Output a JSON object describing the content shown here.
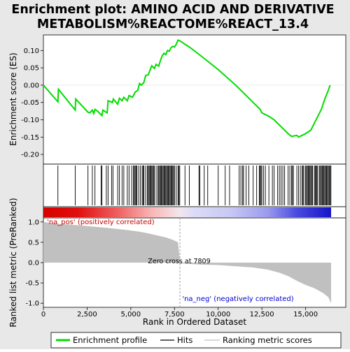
{
  "chart_data": {
    "type": "line",
    "title_line1": "Enrichment plot: AMINO ACID AND DERIVATIVE",
    "title_line2": "METABOLISM%REACTOME%REACT_13.4",
    "xlabel": "Rank in Ordered Dataset",
    "ylabel_top": "Enrichment score (ES)",
    "ylabel_bottom": "Ranked list metric (PreRanked)",
    "x_ticks": [
      0,
      2500,
      5000,
      7500,
      10000,
      12500,
      15000
    ],
    "x_tick_labels": [
      "0",
      "2,500",
      "5,000",
      "7,500",
      "10,000",
      "12,500",
      "15,000"
    ],
    "es_yticks": [
      0.1,
      0.05,
      0.0,
      -0.05,
      -0.1,
      -0.15,
      -0.2
    ],
    "es_ytick_labels": [
      "0.10",
      "0.05",
      "0.00",
      "-0.05",
      "-0.10",
      "-0.15",
      "-0.20"
    ],
    "es_ylim": [
      -0.228,
      0.145
    ],
    "metric_yticks": [
      1.0,
      0.5,
      0.0,
      -0.5,
      -1.0
    ],
    "metric_ytick_labels": [
      "1.0",
      "0.5",
      "0.0",
      "-0.5",
      "-1.0"
    ],
    "metric_ylim": [
      -1.1,
      1.1
    ],
    "xlim": [
      0,
      17300
    ],
    "n_genes": 16460,
    "zero_cross_rank": 7809,
    "zero_cross_label": "Zero cross at 7809",
    "pos_label": "'na_pos' (positively correlated)",
    "neg_label": "'na_neg' (negatively correlated)",
    "legend": [
      "Enrichment profile",
      "Hits",
      "Ranking metric scores"
    ],
    "colors": {
      "es_line": "#00dd00",
      "hits": "#000000",
      "metric_fill": "#c0c0c0",
      "pos_label": "#cc0000",
      "neg_label": "#0000cc",
      "zero_line": "#a0a0a0"
    },
    "hits": [
      830,
      1820,
      2550,
      2800,
      2950,
      3300,
      3350,
      3600,
      3700,
      3900,
      3980,
      4250,
      4350,
      4500,
      4600,
      4800,
      4900,
      5050,
      5150,
      5200,
      5250,
      5300,
      5350,
      5450,
      5550,
      5650,
      5700,
      5750,
      5850,
      5950,
      6000,
      6050,
      6100,
      6150,
      6200,
      6250,
      6300,
      6350,
      6450,
      6550,
      6600,
      6650,
      6700,
      6750,
      6800,
      6850,
      6900,
      6950,
      7000,
      7050,
      7100,
      7150,
      7200,
      7250,
      7300,
      7350,
      7400,
      7450,
      7500,
      7600,
      7700,
      7750,
      7800,
      8100,
      8350,
      8900,
      8950,
      9200,
      9400,
      10000,
      10400,
      10650,
      11200,
      11300,
      11400,
      11450,
      11600,
      11750,
      12000,
      12200,
      12350,
      12400,
      12450,
      12500,
      12600,
      12700,
      12900,
      13100,
      13200,
      13400,
      13500,
      13600,
      13700,
      13800,
      14000,
      14100,
      14200,
      14250,
      14300,
      14500,
      14600,
      14700,
      14800,
      14850,
      14900,
      15000,
      15050,
      15100,
      15150,
      15200,
      15250,
      15300,
      15350,
      15400,
      15500,
      15550,
      15600,
      15650,
      15700,
      15800,
      15850,
      15900,
      15950,
      16000,
      16050,
      16100,
      16150,
      16200,
      16250,
      16300,
      16350,
      16400,
      16450
    ],
    "es_curve": [
      [
        0,
        0.0
      ],
      [
        830,
        -0.048
      ],
      [
        860,
        -0.012
      ],
      [
        1820,
        -0.072
      ],
      [
        1850,
        -0.04
      ],
      [
        2550,
        -0.078
      ],
      [
        2650,
        -0.08
      ],
      [
        2800,
        -0.072
      ],
      [
        2880,
        -0.082
      ],
      [
        2950,
        -0.07
      ],
      [
        3100,
        -0.075
      ],
      [
        3350,
        -0.088
      ],
      [
        3400,
        -0.072
      ],
      [
        3650,
        -0.08
      ],
      [
        3700,
        -0.045
      ],
      [
        3950,
        -0.05
      ],
      [
        4000,
        -0.04
      ],
      [
        4250,
        -0.055
      ],
      [
        4350,
        -0.038
      ],
      [
        4500,
        -0.045
      ],
      [
        4600,
        -0.035
      ],
      [
        4800,
        -0.045
      ],
      [
        4900,
        -0.03
      ],
      [
        5100,
        -0.035
      ],
      [
        5250,
        -0.02
      ],
      [
        5400,
        -0.015
      ],
      [
        5500,
        0.005
      ],
      [
        5600,
        0.0
      ],
      [
        5750,
        0.008
      ],
      [
        5850,
        0.028
      ],
      [
        6000,
        0.03
      ],
      [
        6150,
        0.05
      ],
      [
        6200,
        0.056
      ],
      [
        6350,
        0.048
      ],
      [
        6450,
        0.06
      ],
      [
        6600,
        0.055
      ],
      [
        6700,
        0.072
      ],
      [
        6800,
        0.085
      ],
      [
        6900,
        0.092
      ],
      [
        7000,
        0.088
      ],
      [
        7100,
        0.1
      ],
      [
        7200,
        0.098
      ],
      [
        7300,
        0.108
      ],
      [
        7400,
        0.112
      ],
      [
        7500,
        0.11
      ],
      [
        7600,
        0.118
      ],
      [
        7700,
        0.13
      ],
      [
        7800,
        0.128
      ],
      [
        7900,
        0.125
      ],
      [
        8100,
        0.118
      ],
      [
        8350,
        0.11
      ],
      [
        9000,
        0.085
      ],
      [
        10000,
        0.045
      ],
      [
        11000,
        0.0
      ],
      [
        11500,
        -0.025
      ],
      [
        12000,
        -0.05
      ],
      [
        12400,
        -0.07
      ],
      [
        12500,
        -0.08
      ],
      [
        12900,
        -0.09
      ],
      [
        13200,
        -0.1
      ],
      [
        13600,
        -0.12
      ],
      [
        13900,
        -0.135
      ],
      [
        14000,
        -0.14
      ],
      [
        14200,
        -0.148
      ],
      [
        14500,
        -0.145
      ],
      [
        14600,
        -0.15
      ],
      [
        14800,
        -0.145
      ],
      [
        15000,
        -0.14
      ],
      [
        15300,
        -0.13
      ],
      [
        15500,
        -0.11
      ],
      [
        15700,
        -0.09
      ],
      [
        15900,
        -0.07
      ],
      [
        16100,
        -0.04
      ],
      [
        16300,
        -0.015
      ],
      [
        16400,
        0.0
      ]
    ],
    "metric_curve": [
      [
        0,
        1.0
      ],
      [
        500,
        0.97
      ],
      [
        1000,
        0.95
      ],
      [
        2000,
        0.92
      ],
      [
        3000,
        0.88
      ],
      [
        4000,
        0.84
      ],
      [
        5000,
        0.79
      ],
      [
        5500,
        0.76
      ],
      [
        6000,
        0.72
      ],
      [
        6500,
        0.67
      ],
      [
        7000,
        0.62
      ],
      [
        7400,
        0.56
      ],
      [
        7700,
        0.5
      ],
      [
        7809,
        0.02
      ],
      [
        7810,
        -0.02
      ],
      [
        9000,
        -0.05
      ],
      [
        10000,
        -0.06
      ],
      [
        11000,
        -0.09
      ],
      [
        12000,
        -0.12
      ],
      [
        12800,
        -0.17
      ],
      [
        13500,
        -0.25
      ],
      [
        14000,
        -0.33
      ],
      [
        14500,
        -0.45
      ],
      [
        15000,
        -0.55
      ],
      [
        15500,
        -0.63
      ],
      [
        16000,
        -0.75
      ],
      [
        16300,
        -0.85
      ],
      [
        16460,
        -1.0
      ]
    ]
  }
}
